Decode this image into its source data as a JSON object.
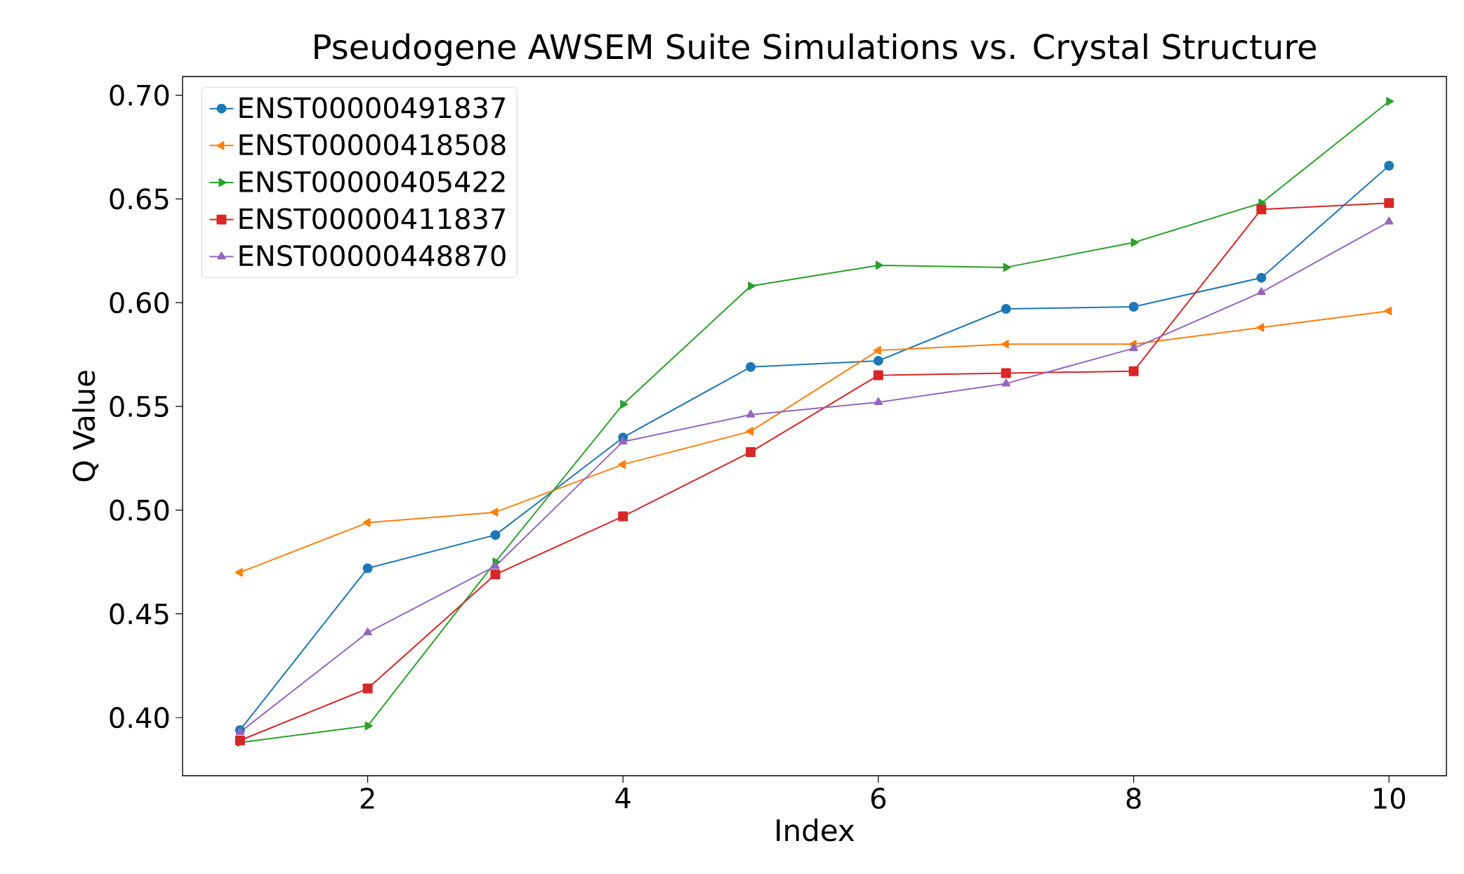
{
  "chart_data": {
    "type": "line",
    "title": "Pseudogene AWSEM Suite Simulations vs. Crystal Structure",
    "xlabel": "Index",
    "ylabel": "Q Value",
    "x": [
      1,
      2,
      3,
      4,
      5,
      6,
      7,
      8,
      9,
      10
    ],
    "series": [
      {
        "name": "ENST00000491837",
        "color": "#1f77b4",
        "marker": "circle",
        "values": [
          0.394,
          0.472,
          0.488,
          0.535,
          0.569,
          0.572,
          0.597,
          0.598,
          0.612,
          0.666
        ]
      },
      {
        "name": "ENST00000418508",
        "color": "#ff7f0e",
        "marker": "triangle-left",
        "values": [
          0.47,
          0.494,
          0.499,
          0.522,
          0.538,
          0.577,
          0.58,
          0.58,
          0.588,
          0.596
        ]
      },
      {
        "name": "ENST00000405422",
        "color": "#2ca02c",
        "marker": "triangle-right",
        "values": [
          0.388,
          0.396,
          0.475,
          0.551,
          0.608,
          0.618,
          0.617,
          0.629,
          0.648,
          0.697
        ]
      },
      {
        "name": "ENST00000411837",
        "color": "#d62728",
        "marker": "square",
        "values": [
          0.389,
          0.414,
          0.469,
          0.497,
          0.528,
          0.565,
          0.566,
          0.567,
          0.645,
          0.648
        ]
      },
      {
        "name": "ENST00000448870",
        "color": "#9467bd",
        "marker": "triangle",
        "values": [
          0.393,
          0.441,
          0.473,
          0.533,
          0.546,
          0.552,
          0.561,
          0.578,
          0.605,
          0.639
        ]
      }
    ],
    "xlim": [
      0.55,
      10.45
    ],
    "ylim": [
      0.372,
      0.709
    ],
    "xticks": [
      2,
      4,
      6,
      8,
      10
    ],
    "yticks": [
      {
        "value": 0.4,
        "label": "0.40"
      },
      {
        "value": 0.45,
        "label": "0.45"
      },
      {
        "value": 0.5,
        "label": "0.50"
      },
      {
        "value": 0.55,
        "label": "0.55"
      },
      {
        "value": 0.6,
        "label": "0.60"
      },
      {
        "value": 0.65,
        "label": "0.65"
      },
      {
        "value": 0.7,
        "label": "0.70"
      }
    ],
    "grid": false,
    "legend": "top left",
    "line_style": "solid"
  }
}
